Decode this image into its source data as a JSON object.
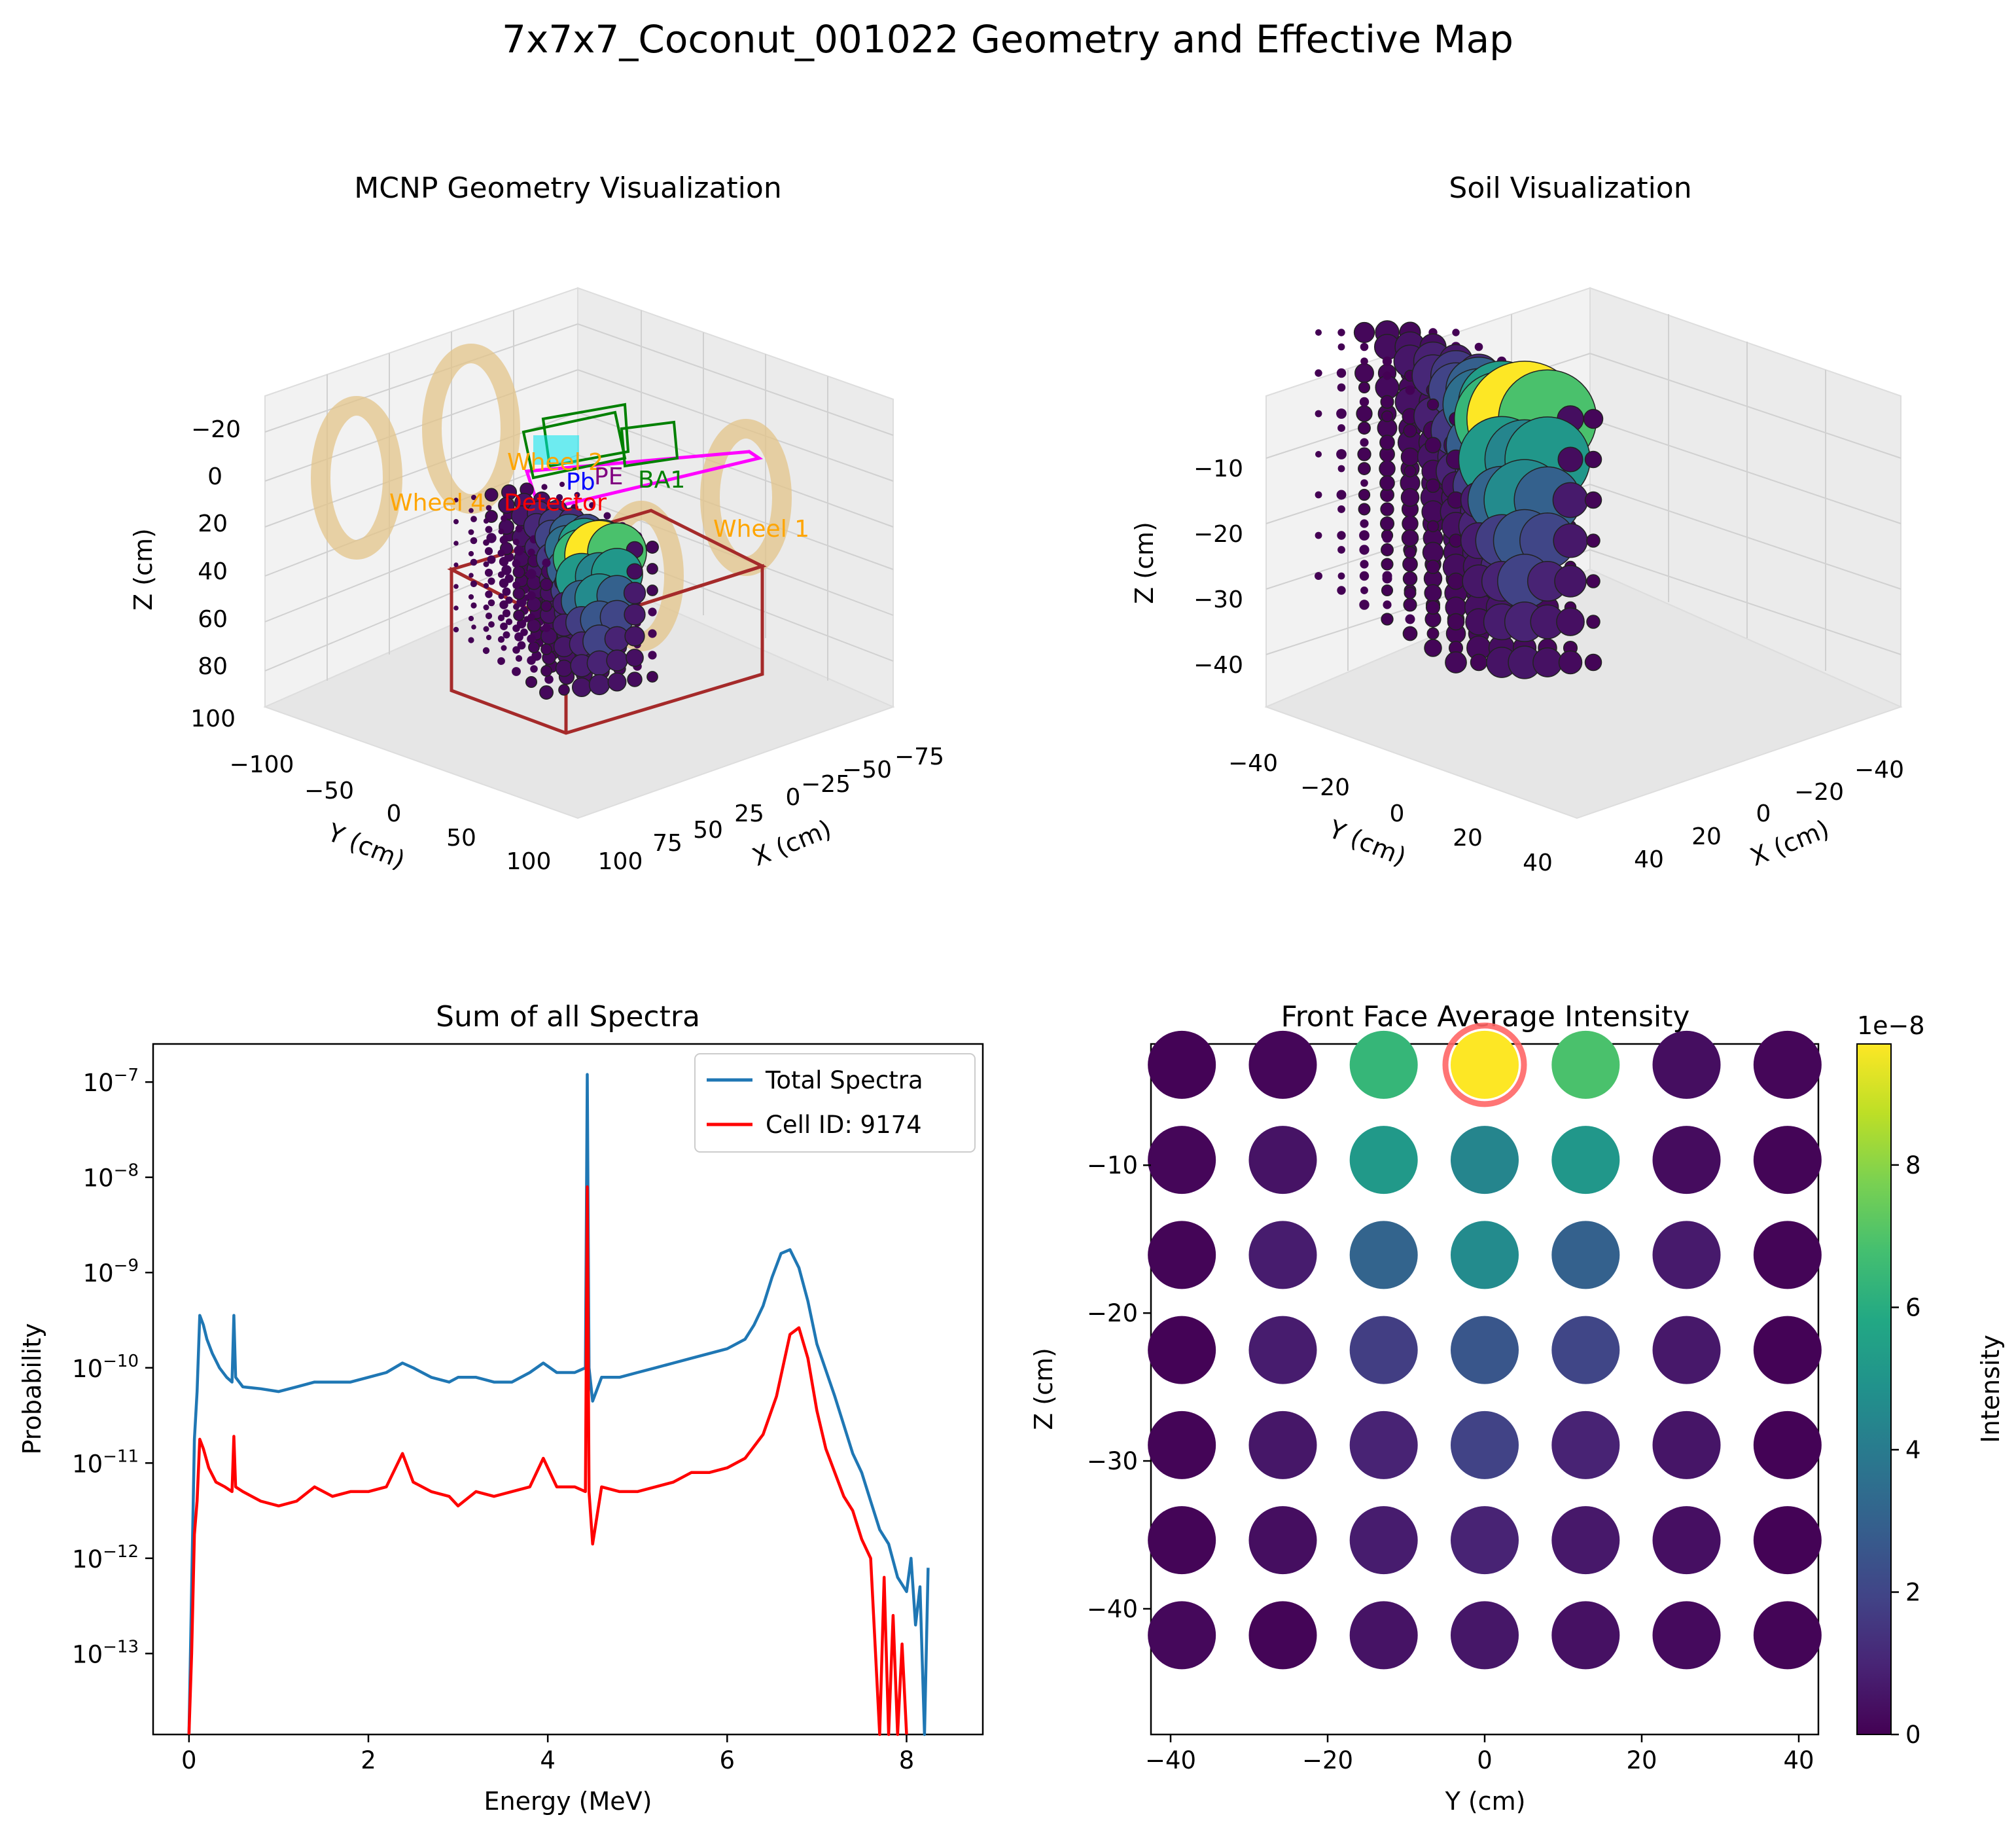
{
  "figure_title": "7x7x7_Coconut_001022 Geometry and Effective Map",
  "chart_data": [
    {
      "type": "scatter3d",
      "title": "MCNP Geometry Visualization",
      "xlabel": "X (cm)",
      "ylabel": "Y (cm)",
      "zlabel": "Z (cm)",
      "xticks": [
        "−75",
        "−50",
        "−25",
        "0",
        "25",
        "50",
        "75",
        "100"
      ],
      "yticks": [
        "−100",
        "−50",
        "0",
        "50",
        "100"
      ],
      "zticks": [
        "−20",
        "0",
        "20",
        "40",
        "60",
        "80",
        "100"
      ],
      "annotations": [
        "Wheel 1",
        "Wheel 2",
        "Wheel 4",
        "Detector",
        "Pb",
        "PE",
        "BA1"
      ],
      "colors": {
        "wheel": "#e0b060",
        "soil_box": "#a52a2a",
        "shield": "#ff00ff",
        "detector": "#008000",
        "label_wheel": "#ffa500",
        "label_detector": "#ff0000",
        "label_pb": "#0000ff",
        "label_pe": "#800080",
        "label_ba": "#008000"
      }
    },
    {
      "type": "scatter3d",
      "title": "Soil Visualization",
      "xlabel": "X (cm)",
      "ylabel": "Y (cm)",
      "zlabel": "Z (cm)",
      "xticks": [
        "40",
        "20",
        "0",
        "−20",
        "−40"
      ],
      "yticks": [
        "−40",
        "−20",
        "0",
        "20",
        "40"
      ],
      "zticks": [
        "−10",
        "−20",
        "−30",
        "−40"
      ]
    },
    {
      "type": "line",
      "title": "Sum of all Spectra",
      "xlabel": "Energy (MeV)",
      "ylabel": "Probability",
      "xlim": [
        -0.4,
        8.85
      ],
      "ylim_log10": [
        -13.85,
        -6.6
      ],
      "yscale": "log",
      "xticks": [
        0,
        2,
        4,
        6,
        8
      ],
      "ytick_exponents": [
        -13,
        -12,
        -11,
        -10,
        -9,
        -8,
        -7
      ],
      "legend": "top-right",
      "series": [
        {
          "name": "Total Spectra",
          "color": "#1f77b4",
          "points": [
            [
              0.0,
              -13.9
            ],
            [
              0.03,
              -12.3
            ],
            [
              0.06,
              -10.75
            ],
            [
              0.09,
              -10.25
            ],
            [
              0.12,
              -9.45
            ],
            [
              0.16,
              -9.55
            ],
            [
              0.2,
              -9.7
            ],
            [
              0.26,
              -9.85
            ],
            [
              0.34,
              -10.0
            ],
            [
              0.42,
              -10.1
            ],
            [
              0.48,
              -10.15
            ],
            [
              0.5,
              -9.45
            ],
            [
              0.52,
              -10.1
            ],
            [
              0.6,
              -10.2
            ],
            [
              0.8,
              -10.22
            ],
            [
              1.0,
              -10.25
            ],
            [
              1.2,
              -10.2
            ],
            [
              1.4,
              -10.15
            ],
            [
              1.6,
              -10.15
            ],
            [
              1.8,
              -10.15
            ],
            [
              2.0,
              -10.1
            ],
            [
              2.2,
              -10.05
            ],
            [
              2.38,
              -9.95
            ],
            [
              2.5,
              -10.0
            ],
            [
              2.7,
              -10.1
            ],
            [
              2.9,
              -10.15
            ],
            [
              3.0,
              -10.1
            ],
            [
              3.2,
              -10.1
            ],
            [
              3.4,
              -10.15
            ],
            [
              3.6,
              -10.15
            ],
            [
              3.8,
              -10.05
            ],
            [
              3.95,
              -9.95
            ],
            [
              4.1,
              -10.05
            ],
            [
              4.3,
              -10.05
            ],
            [
              4.42,
              -10.0
            ],
            [
              4.44,
              -6.92
            ],
            [
              4.46,
              -10.0
            ],
            [
              4.5,
              -10.35
            ],
            [
              4.6,
              -10.1
            ],
            [
              4.8,
              -10.1
            ],
            [
              5.0,
              -10.05
            ],
            [
              5.2,
              -10.0
            ],
            [
              5.4,
              -9.95
            ],
            [
              5.6,
              -9.9
            ],
            [
              5.8,
              -9.85
            ],
            [
              6.0,
              -9.8
            ],
            [
              6.2,
              -9.7
            ],
            [
              6.3,
              -9.55
            ],
            [
              6.4,
              -9.35
            ],
            [
              6.5,
              -9.05
            ],
            [
              6.6,
              -8.8
            ],
            [
              6.7,
              -8.76
            ],
            [
              6.8,
              -8.95
            ],
            [
              6.9,
              -9.3
            ],
            [
              7.0,
              -9.75
            ],
            [
              7.2,
              -10.3
            ],
            [
              7.4,
              -10.9
            ],
            [
              7.5,
              -11.1
            ],
            [
              7.6,
              -11.4
            ],
            [
              7.7,
              -11.7
            ],
            [
              7.8,
              -11.85
            ],
            [
              7.9,
              -12.2
            ],
            [
              8.0,
              -12.35
            ],
            [
              8.05,
              -12.0
            ],
            [
              8.1,
              -12.7
            ],
            [
              8.15,
              -12.3
            ],
            [
              8.2,
              -13.9
            ],
            [
              8.24,
              -12.1
            ]
          ]
        },
        {
          "name": "Cell ID: 9174",
          "color": "#ff0000",
          "points": [
            [
              0.0,
              -13.9
            ],
            [
              0.03,
              -13.0
            ],
            [
              0.06,
              -11.75
            ],
            [
              0.09,
              -11.4
            ],
            [
              0.12,
              -10.75
            ],
            [
              0.16,
              -10.85
            ],
            [
              0.22,
              -11.05
            ],
            [
              0.3,
              -11.2
            ],
            [
              0.4,
              -11.25
            ],
            [
              0.48,
              -11.3
            ],
            [
              0.5,
              -10.72
            ],
            [
              0.52,
              -11.25
            ],
            [
              0.6,
              -11.3
            ],
            [
              0.8,
              -11.4
            ],
            [
              1.0,
              -11.45
            ],
            [
              1.2,
              -11.4
            ],
            [
              1.4,
              -11.25
            ],
            [
              1.6,
              -11.35
            ],
            [
              1.8,
              -11.3
            ],
            [
              2.0,
              -11.3
            ],
            [
              2.2,
              -11.25
            ],
            [
              2.38,
              -10.9
            ],
            [
              2.5,
              -11.2
            ],
            [
              2.7,
              -11.3
            ],
            [
              2.9,
              -11.35
            ],
            [
              3.0,
              -11.45
            ],
            [
              3.2,
              -11.3
            ],
            [
              3.4,
              -11.35
            ],
            [
              3.6,
              -11.3
            ],
            [
              3.8,
              -11.25
            ],
            [
              3.95,
              -10.95
            ],
            [
              4.1,
              -11.25
            ],
            [
              4.3,
              -11.25
            ],
            [
              4.42,
              -11.3
            ],
            [
              4.44,
              -8.1
            ],
            [
              4.46,
              -11.3
            ],
            [
              4.5,
              -11.85
            ],
            [
              4.6,
              -11.25
            ],
            [
              4.8,
              -11.3
            ],
            [
              5.0,
              -11.3
            ],
            [
              5.2,
              -11.25
            ],
            [
              5.4,
              -11.2
            ],
            [
              5.6,
              -11.1
            ],
            [
              5.8,
              -11.1
            ],
            [
              6.0,
              -11.05
            ],
            [
              6.2,
              -10.95
            ],
            [
              6.4,
              -10.7
            ],
            [
              6.55,
              -10.3
            ],
            [
              6.7,
              -9.65
            ],
            [
              6.8,
              -9.58
            ],
            [
              6.9,
              -9.9
            ],
            [
              7.0,
              -10.45
            ],
            [
              7.1,
              -10.85
            ],
            [
              7.2,
              -11.1
            ],
            [
              7.3,
              -11.35
            ],
            [
              7.4,
              -11.5
            ],
            [
              7.5,
              -11.8
            ],
            [
              7.6,
              -12.0
            ],
            [
              7.7,
              -13.9
            ],
            [
              7.75,
              -12.2
            ],
            [
              7.8,
              -13.9
            ],
            [
              7.85,
              -12.6
            ],
            [
              7.9,
              -13.9
            ],
            [
              7.95,
              -12.9
            ],
            [
              8.0,
              -13.9
            ]
          ]
        }
      ]
    },
    {
      "type": "scatter",
      "title": "Front Face Average Intensity",
      "xlabel": "Y (cm)",
      "ylabel": "Z (cm)",
      "xlim": [
        -42.5,
        42.5
      ],
      "ylim": [
        -48.5,
        -1.8
      ],
      "xticks": [
        -40,
        -20,
        0,
        20,
        40
      ],
      "yticks": [
        -10,
        -20,
        -30,
        -40
      ],
      "y_positions": [
        -38.57,
        -25.71,
        -12.86,
        0,
        12.86,
        25.71,
        38.57
      ],
      "z_positions": [
        -3.21,
        -9.64,
        -16.07,
        -22.5,
        -28.93,
        -35.36,
        -41.79
      ],
      "intensity_rows": [
        [
          0.05,
          0.15,
          6.4,
          9.7,
          6.9,
          0.35,
          0.15
        ],
        [
          0.15,
          0.5,
          5.2,
          4.4,
          5.1,
          0.3,
          0.1
        ],
        [
          0.1,
          0.75,
          3.1,
          4.6,
          3.0,
          0.7,
          0.1
        ],
        [
          0.05,
          0.75,
          1.75,
          2.6,
          2.0,
          0.65,
          0.05
        ],
        [
          0.1,
          0.6,
          0.95,
          1.9,
          0.95,
          0.55,
          0.05
        ],
        [
          0.1,
          0.35,
          0.75,
          0.95,
          0.65,
          0.4,
          0.05
        ],
        [
          0.2,
          0.1,
          0.5,
          0.6,
          0.45,
          0.25,
          0.1
        ]
      ],
      "highlight": {
        "y": 0,
        "z": -3.21,
        "color": "#ff6666"
      },
      "colorbar": {
        "label": "Intensity",
        "multiplier": "1e−8",
        "min": 0,
        "max": 9.7,
        "ticks": [
          0,
          2,
          4,
          6,
          8
        ],
        "colormap": "viridis"
      }
    }
  ]
}
